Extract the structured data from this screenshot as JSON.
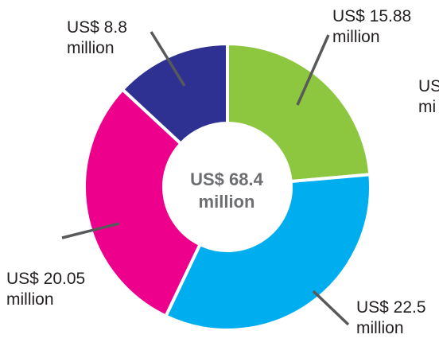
{
  "chart_data": {
    "type": "pie",
    "center_label": {
      "line1": "US$ 68.4",
      "line2": "million"
    },
    "slices": [
      {
        "label_line1": "US$ 15.88",
        "label_line2": "million",
        "value": 15.88,
        "color": "#8dc63f"
      },
      {
        "label_line1": "US$ 22.5",
        "label_line2": "million",
        "value": 22.5,
        "color": "#00aeef"
      },
      {
        "label_line1": "US$ 20.05",
        "label_line2": "million",
        "value": 20.05,
        "color": "#ec008c"
      },
      {
        "label_line1": "US$ 8.8",
        "label_line2": "million",
        "value": 8.8,
        "color": "#2e3192"
      }
    ],
    "offscreen_label": {
      "line1": "US",
      "line2": "mi"
    },
    "leader_line_color": "#58595b"
  }
}
